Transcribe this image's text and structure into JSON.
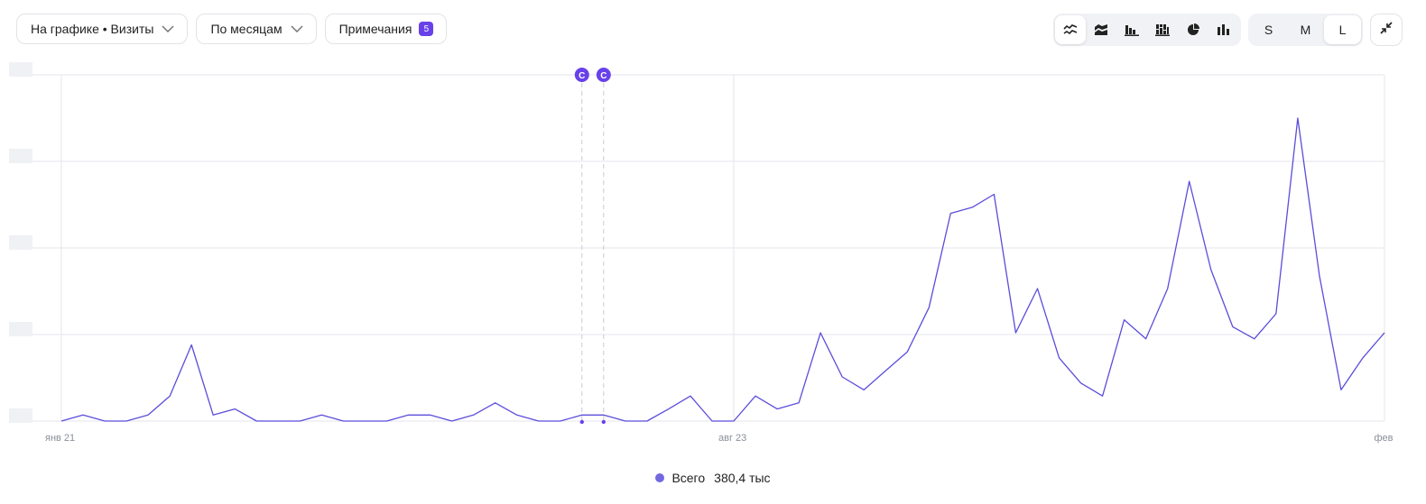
{
  "toolbar": {
    "metric_label": "На графике • Визиты",
    "period_label": "По месяцам",
    "notes_label": "Примечания",
    "notes_count": "5",
    "size_options": [
      "S",
      "M",
      "L"
    ],
    "active_size": "L",
    "chart_types": [
      "line-icon",
      "stacked-area-icon",
      "bar-icon",
      "stacked-bar-icon",
      "pie-icon",
      "column-icon"
    ],
    "active_chart_type": "line-icon"
  },
  "colors": {
    "series": "#5b4ddb",
    "accent": "#6841ea",
    "grid": "#e4e6ec"
  },
  "annotations": [
    {
      "label": "С"
    },
    {
      "label": "С"
    }
  ],
  "legend": {
    "name": "Всего",
    "total": "380,4 тыс"
  },
  "chart_data": {
    "type": "line",
    "x_tick_labels": [
      {
        "index": 0,
        "label": "янв 21"
      },
      {
        "index": 31,
        "label": "авг 23"
      },
      {
        "index": 61,
        "label": "фев"
      }
    ],
    "annotation_indices": [
      24,
      25
    ],
    "y_tick_count": 5,
    "ylim": [
      0,
      4
    ],
    "grid": true,
    "series": [
      {
        "name": "Всего",
        "values": [
          0,
          0.07,
          0,
          0,
          0.07,
          0.29,
          0.88,
          0.07,
          0.14,
          0,
          0,
          0,
          0.07,
          0,
          0,
          0,
          0.07,
          0.07,
          0,
          0.07,
          0.21,
          0.07,
          0,
          0,
          0.07,
          0.07,
          0,
          0,
          0.14,
          0.29,
          0,
          0,
          0.29,
          0.14,
          0.21,
          1.02,
          0.51,
          0.36,
          0.58,
          0.8,
          1.31,
          2.4,
          2.47,
          2.62,
          1.02,
          1.53,
          0.73,
          0.44,
          0.29,
          1.17,
          0.95,
          1.53,
          2.77,
          1.75,
          1.09,
          0.95,
          1.24,
          3.5,
          1.68,
          0.36,
          0.73,
          1.02
        ]
      }
    ]
  }
}
